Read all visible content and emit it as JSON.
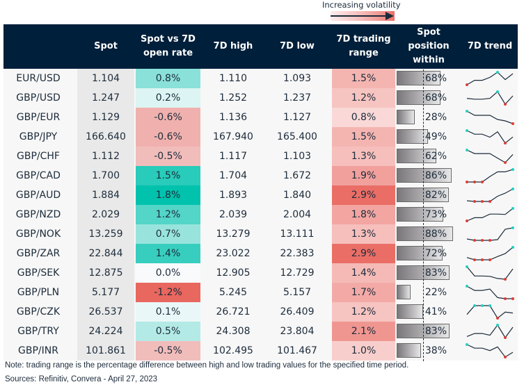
{
  "legend": {
    "label": "Increasing volatility"
  },
  "header": {
    "pair": "",
    "spot": "Spot",
    "change": "Spot vs 7D open rate",
    "high": "7D high",
    "low": "7D low",
    "range": "7D trading range",
    "position": "Spot position within",
    "trend": "7D trend"
  },
  "colors": {
    "header_bg": "#001f3a",
    "positive_max": "#00c2ad",
    "negative_max": "#e8675f",
    "range_max": "#ea6e66",
    "sparkline_line": "#1b2a3a",
    "sparkline_high": "#1fd1c0",
    "sparkline_low": "#e03a32"
  },
  "rows": [
    {
      "pair": "EUR/USD",
      "spot": "1.104",
      "change": "0.8%",
      "change_v": 0.8,
      "high": "1.110",
      "low": "1.093",
      "range": "1.5%",
      "range_v": 1.5,
      "position": "68%",
      "position_v": 0.68,
      "trend": [
        1.093,
        1.099,
        1.099,
        1.103,
        1.11,
        1.1,
        1.108
      ]
    },
    {
      "pair": "GBP/USD",
      "spot": "1.247",
      "change": "0.2%",
      "change_v": 0.2,
      "high": "1.252",
      "low": "1.237",
      "range": "1.2%",
      "range_v": 1.2,
      "position": "68%",
      "position_v": 0.68,
      "trend": [
        1.244,
        1.243,
        1.243,
        1.244,
        1.252,
        1.237,
        1.247
      ]
    },
    {
      "pair": "GBP/EUR",
      "spot": "1.129",
      "change": "-0.6%",
      "change_v": -0.6,
      "high": "1.136",
      "low": "1.127",
      "range": "0.8%",
      "range_v": 0.8,
      "position": "28%",
      "position_v": 0.28,
      "trend": [
        1.136,
        1.133,
        1.133,
        1.133,
        1.13,
        1.129,
        1.127
      ]
    },
    {
      "pair": "GBP/JPY",
      "spot": "166.640",
      "change": "-0.6%",
      "change_v": -0.6,
      "high": "167.940",
      "low": "165.400",
      "range": "1.5%",
      "range_v": 1.5,
      "position": "49%",
      "position_v": 0.49,
      "trend": [
        167.94,
        167.2,
        167.2,
        166.6,
        167.7,
        165.4,
        166.64
      ]
    },
    {
      "pair": "GBP/CHF",
      "spot": "1.112",
      "change": "-0.5%",
      "change_v": -0.5,
      "high": "1.117",
      "low": "1.103",
      "range": "1.3%",
      "range_v": 1.3,
      "position": "62%",
      "position_v": 0.62,
      "trend": [
        1.117,
        1.113,
        1.113,
        1.113,
        1.108,
        1.103,
        1.112
      ]
    },
    {
      "pair": "GBP/CAD",
      "spot": "1.700",
      "change": "1.5%",
      "change_v": 1.5,
      "high": "1.704",
      "low": "1.672",
      "range": "1.9%",
      "range_v": 1.9,
      "position": "86%",
      "position_v": 0.86,
      "trend": [
        1.672,
        1.672,
        1.672,
        1.686,
        1.698,
        1.698,
        1.704
      ]
    },
    {
      "pair": "GBP/AUD",
      "spot": "1.884",
      "change": "1.8%",
      "change_v": 1.8,
      "high": "1.893",
      "low": "1.840",
      "range": "2.9%",
      "range_v": 2.9,
      "position": "82%",
      "position_v": 0.82,
      "trend": [
        1.843,
        1.84,
        1.84,
        1.84,
        1.862,
        1.875,
        1.893
      ]
    },
    {
      "pair": "GBP/NZD",
      "spot": "2.029",
      "change": "1.2%",
      "change_v": 1.2,
      "high": "2.039",
      "low": "2.004",
      "range": "1.8%",
      "range_v": 1.8,
      "position": "73%",
      "position_v": 0.73,
      "trend": [
        2.004,
        2.013,
        2.013,
        2.023,
        2.023,
        2.022,
        2.039
      ]
    },
    {
      "pair": "GBP/NOK",
      "spot": "13.259",
      "change": "0.7%",
      "change_v": 0.7,
      "high": "13.279",
      "low": "13.111",
      "range": "1.3%",
      "range_v": 1.3,
      "position": "88%",
      "position_v": 0.88,
      "trend": [
        13.13,
        13.111,
        13.111,
        13.111,
        13.12,
        13.26,
        13.279
      ]
    },
    {
      "pair": "GBP/ZAR",
      "spot": "22.844",
      "change": "1.4%",
      "change_v": 1.4,
      "high": "23.022",
      "low": "22.383",
      "range": "2.9%",
      "range_v": 2.9,
      "position": "72%",
      "position_v": 0.72,
      "trend": [
        22.5,
        22.383,
        22.383,
        22.383,
        22.55,
        22.7,
        23.022
      ]
    },
    {
      "pair": "GBP/SEK",
      "spot": "12.875",
      "change": "0.0%",
      "change_v": 0.0,
      "high": "12.905",
      "low": "12.729",
      "range": "1.4%",
      "range_v": 1.4,
      "position": "83%",
      "position_v": 0.83,
      "trend": [
        12.905,
        12.775,
        12.775,
        12.77,
        12.74,
        12.729,
        12.875
      ]
    },
    {
      "pair": "GBP/PLN",
      "spot": "5.177",
      "change": "-1.2%",
      "change_v": -1.2,
      "high": "5.245",
      "low": "5.157",
      "range": "1.7%",
      "range_v": 1.7,
      "position": "22%",
      "position_v": 0.22,
      "trend": [
        5.245,
        5.215,
        5.215,
        5.225,
        5.165,
        5.157,
        5.157
      ]
    },
    {
      "pair": "GBP/CZK",
      "spot": "26.537",
      "change": "0.1%",
      "change_v": 0.1,
      "high": "26.721",
      "low": "26.409",
      "range": "1.2%",
      "range_v": 1.2,
      "position": "41%",
      "position_v": 0.41,
      "trend": [
        26.5,
        26.721,
        26.721,
        26.721,
        26.409,
        26.56,
        26.537
      ]
    },
    {
      "pair": "GBP/TRY",
      "spot": "24.224",
      "change": "0.5%",
      "change_v": 0.5,
      "high": "24.308",
      "low": "23.804",
      "range": "2.1%",
      "range_v": 2.1,
      "position": "83%",
      "position_v": 0.83,
      "trend": [
        23.85,
        23.97,
        23.97,
        23.9,
        24.308,
        23.804,
        24.224
      ]
    },
    {
      "pair": "GBP/INR",
      "spot": "101.861",
      "change": "-0.5%",
      "change_v": -0.5,
      "high": "102.495",
      "low": "101.467",
      "range": "1.0%",
      "range_v": 1.0,
      "position": "38%",
      "position_v": 0.38,
      "trend": [
        102.495,
        102.2,
        102.2,
        102.0,
        102.3,
        101.467,
        101.861
      ]
    }
  ],
  "footer": {
    "note": "Note: trading range is the percentage difference between high and low trading values for the specified time period.",
    "sources": "Sources: Refinitiv, Convera - April 27, 2023"
  }
}
